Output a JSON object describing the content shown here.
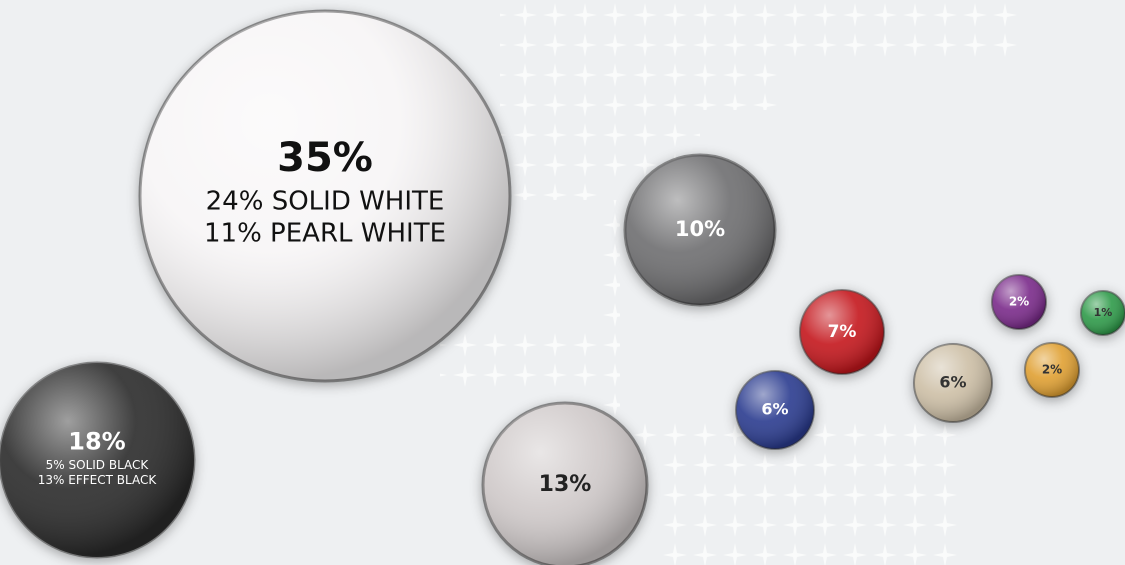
{
  "chart_data": {
    "type": "bubble",
    "bubbles": [
      {
        "value": 35,
        "label": "35%",
        "color": "#f7f5f6",
        "notes": [
          "24% SOLID WHITE",
          "11% PEARL WHITE"
        ]
      },
      {
        "value": 18,
        "label": "18%",
        "color": "#2a2a2a",
        "notes": [
          "5% SOLID BLACK",
          "13% EFFECT BLACK"
        ]
      },
      {
        "value": 13,
        "label": "13%",
        "color": "#cfc9c9"
      },
      {
        "value": 10,
        "label": "10%",
        "color": "#6e6e70"
      },
      {
        "value": 7,
        "label": "7%",
        "color": "#c4161c"
      },
      {
        "value": 6,
        "label": "6%",
        "color": "#2b3a8f"
      },
      {
        "value": 6,
        "label": "6%",
        "color": "#cdbfa6"
      },
      {
        "value": 2,
        "label": "2%",
        "color": "#7a2a8a"
      },
      {
        "value": 2,
        "label": "2%",
        "color": "#e0a030"
      },
      {
        "value": 1,
        "label": "1%",
        "color": "#2e9a4a"
      }
    ]
  }
}
